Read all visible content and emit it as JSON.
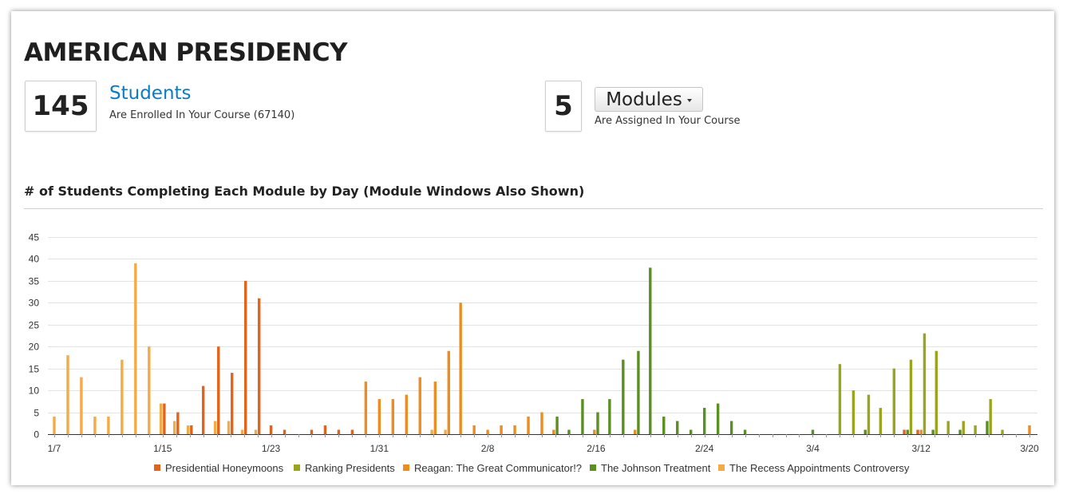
{
  "header": {
    "title": "AMERICAN PRESIDENCY"
  },
  "students": {
    "count": "145",
    "label": "Students",
    "sublabel": "Are Enrolled In Your Course (67140)"
  },
  "modules": {
    "count": "5",
    "button_label": "Modules",
    "sublabel": "Are Assigned In Your Course"
  },
  "chart_heading": "# of Students Completing Each Module by Day (Module Windows Also Shown)",
  "colors": {
    "Presidential Honeymoons": "#e2641a",
    "Ranking Presidents": "#99a61c",
    "Reagan: The Great Communicator!?": "#ee8c1f",
    "The Johnson Treatment": "#5b8f22",
    "The Recess Appointments Controversy": "#f4aa45"
  },
  "chart_data": {
    "type": "bar",
    "title": "# of Students Completing Each Module by Day (Module Windows Also Shown)",
    "xlabel": "",
    "ylabel": "",
    "ylim": [
      0,
      45
    ],
    "yticks": [
      0,
      5,
      10,
      15,
      20,
      25,
      30,
      35,
      40,
      45
    ],
    "x_start": "1/7",
    "x_end": "3/20",
    "xticks": [
      "1/7",
      "1/15",
      "1/23",
      "1/31",
      "2/8",
      "2/16",
      "2/24",
      "3/4",
      "3/12",
      "3/20"
    ],
    "grid": true,
    "legend_position": "bottom",
    "series": [
      {
        "name": "The Recess Appointments Controversy",
        "points": [
          [
            "1/7",
            4
          ],
          [
            "1/8",
            18
          ],
          [
            "1/9",
            13
          ],
          [
            "1/10",
            4
          ],
          [
            "1/11",
            4
          ],
          [
            "1/12",
            17
          ],
          [
            "1/13",
            39
          ],
          [
            "1/14",
            20
          ],
          [
            "1/15",
            7
          ],
          [
            "1/16",
            3
          ],
          [
            "1/17",
            2
          ],
          [
            "1/19",
            3
          ],
          [
            "1/20",
            3
          ],
          [
            "1/21",
            1
          ],
          [
            "1/22",
            1
          ],
          [
            "2/4",
            1
          ],
          [
            "2/5",
            1
          ]
        ]
      },
      {
        "name": "Presidential Honeymoons",
        "points": [
          [
            "1/15",
            7
          ],
          [
            "1/16",
            5
          ],
          [
            "1/17",
            2
          ],
          [
            "1/18",
            11
          ],
          [
            "1/19",
            20
          ],
          [
            "1/20",
            14
          ],
          [
            "1/21",
            35
          ],
          [
            "1/22",
            31
          ],
          [
            "1/23",
            2
          ],
          [
            "1/24",
            1
          ],
          [
            "1/26",
            1
          ],
          [
            "1/27",
            2
          ],
          [
            "1/28",
            1
          ],
          [
            "1/29",
            1
          ],
          [
            "3/11",
            1
          ],
          [
            "3/12",
            1
          ]
        ]
      },
      {
        "name": "Reagan: The Great Communicator!?",
        "points": [
          [
            "1/30",
            12
          ],
          [
            "1/31",
            8
          ],
          [
            "2/1",
            8
          ],
          [
            "2/2",
            9
          ],
          [
            "2/3",
            13
          ],
          [
            "2/4",
            12
          ],
          [
            "2/5",
            19
          ],
          [
            "2/6",
            30
          ],
          [
            "2/7",
            2
          ],
          [
            "2/8",
            1
          ],
          [
            "2/9",
            2
          ],
          [
            "2/10",
            2
          ],
          [
            "2/11",
            4
          ],
          [
            "2/12",
            5
          ],
          [
            "2/13",
            1
          ],
          [
            "2/16",
            1
          ],
          [
            "2/19",
            1
          ],
          [
            "3/12",
            1
          ],
          [
            "3/20",
            2
          ]
        ]
      },
      {
        "name": "The Johnson Treatment",
        "points": [
          [
            "2/13",
            4
          ],
          [
            "2/14",
            1
          ],
          [
            "2/15",
            8
          ],
          [
            "2/16",
            5
          ],
          [
            "2/17",
            8
          ],
          [
            "2/18",
            17
          ],
          [
            "2/19",
            19
          ],
          [
            "2/20",
            38
          ],
          [
            "2/21",
            4
          ],
          [
            "2/22",
            3
          ],
          [
            "2/23",
            1
          ],
          [
            "2/24",
            6
          ],
          [
            "2/25",
            7
          ],
          [
            "2/26",
            3
          ],
          [
            "2/27",
            1
          ],
          [
            "3/4",
            1
          ],
          [
            "3/8",
            1
          ],
          [
            "3/11",
            1
          ],
          [
            "3/13",
            1
          ],
          [
            "3/15",
            1
          ],
          [
            "3/17",
            3
          ]
        ]
      },
      {
        "name": "Ranking Presidents",
        "points": [
          [
            "3/6",
            16
          ],
          [
            "3/7",
            10
          ],
          [
            "3/8",
            9
          ],
          [
            "3/9",
            6
          ],
          [
            "3/10",
            15
          ],
          [
            "3/11",
            17
          ],
          [
            "3/12",
            23
          ],
          [
            "3/13",
            19
          ],
          [
            "3/14",
            3
          ],
          [
            "3/15",
            3
          ],
          [
            "3/16",
            2
          ],
          [
            "3/17",
            8
          ],
          [
            "3/18",
            1
          ]
        ]
      }
    ]
  }
}
